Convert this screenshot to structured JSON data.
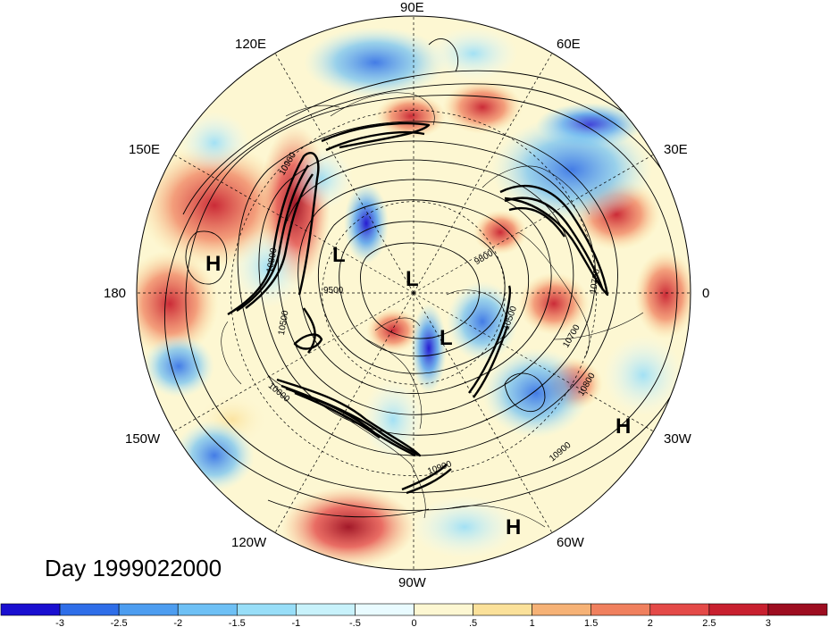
{
  "map": {
    "day_label": "Day 1999022000",
    "lon_labels": [
      {
        "text": "90E",
        "lon": 90
      },
      {
        "text": "60E",
        "lon": 60
      },
      {
        "text": "30E",
        "lon": 30
      },
      {
        "text": "0",
        "lon": 0
      },
      {
        "text": "30W",
        "lon": -30
      },
      {
        "text": "60W",
        "lon": -60
      },
      {
        "text": "90W",
        "lon": -90
      },
      {
        "text": "120W",
        "lon": -120
      },
      {
        "text": "150W",
        "lon": -150
      },
      {
        "text": "180",
        "lon": 180
      },
      {
        "text": "150E",
        "lon": 150
      },
      {
        "text": "120E",
        "lon": 120
      }
    ],
    "pressure_marks": [
      {
        "text": "H",
        "kind": "high"
      },
      {
        "text": "L",
        "kind": "low"
      },
      {
        "text": "L",
        "kind": "low"
      },
      {
        "text": "L",
        "kind": "low"
      },
      {
        "text": "H",
        "kind": "high"
      },
      {
        "text": "H",
        "kind": "high"
      }
    ],
    "contour_labels": [
      "10900",
      "10800",
      "9500",
      "10500",
      "10000",
      "9800",
      "10500",
      "10700",
      "10800",
      "10900",
      "10700",
      "10900"
    ]
  },
  "colorbar": {
    "ticks": [
      "-3",
      "-2.5",
      "-2",
      "-1.5",
      "-1",
      "-.5",
      "0",
      ".5",
      "1",
      "1.5",
      "2",
      "2.5",
      "3"
    ],
    "colors": [
      "#1a0fd0",
      "#2f6ee8",
      "#4d9df0",
      "#6ec0f5",
      "#98def8",
      "#c8f2fb",
      "#e9fbff",
      "#fdf7d2",
      "#fbe19a",
      "#f6b276",
      "#f0805e",
      "#e44a48",
      "#c8202f",
      "#9d0d20"
    ]
  }
}
